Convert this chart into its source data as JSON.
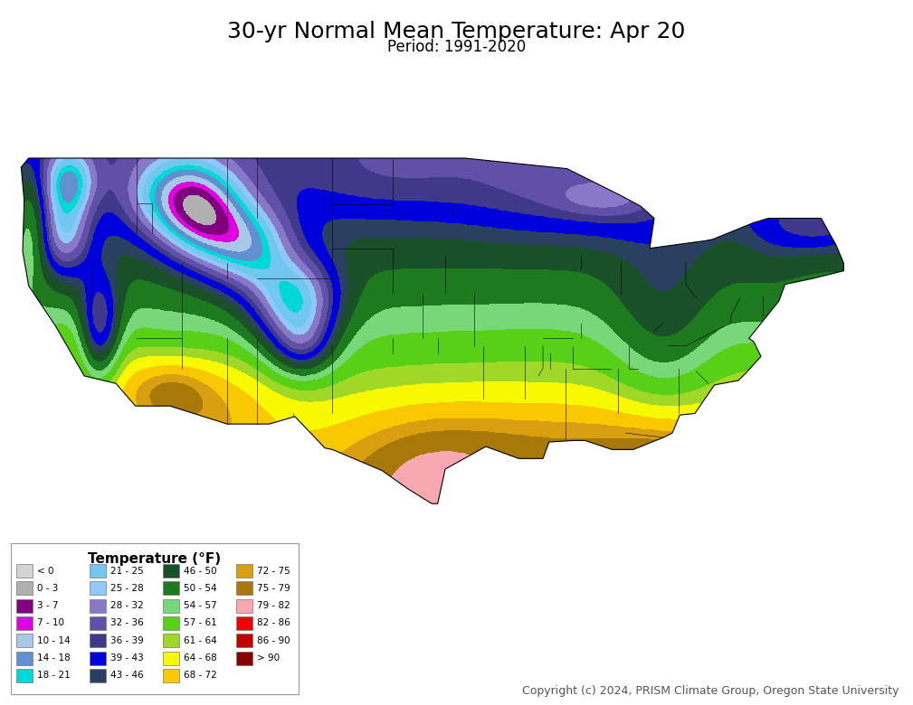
{
  "title": "30-yr Normal Mean Temperature: Apr 20",
  "subtitle": "Period: 1991-2020",
  "copyright": "Copyright (c) 2024, PRISM Climate Group, Oregon State University",
  "legend_title": "Temperature (°F)",
  "background_color": "#ffffff",
  "legend_entries": [
    {
      "label": "< 0",
      "color": "#d3d3d3"
    },
    {
      "label": "0 - 3",
      "color": "#b0b0b0"
    },
    {
      "label": "3 - 7",
      "color": "#800080"
    },
    {
      "label": "7 - 10",
      "color": "#e000e0"
    },
    {
      "label": "10 - 14",
      "color": "#a8c8e8"
    },
    {
      "label": "14 - 18",
      "color": "#6090d0"
    },
    {
      "label": "18 - 21",
      "color": "#00d8d8"
    },
    {
      "label": "21 - 25",
      "color": "#70c8f0"
    },
    {
      "label": "25 - 28",
      "color": "#90c8f8"
    },
    {
      "label": "28 - 32",
      "color": "#8878c8"
    },
    {
      "label": "32 - 36",
      "color": "#6050a8"
    },
    {
      "label": "36 - 39",
      "color": "#403888"
    },
    {
      "label": "39 - 43",
      "color": "#0000dd"
    },
    {
      "label": "43 - 46",
      "color": "#2a4060"
    },
    {
      "label": "46 - 50",
      "color": "#1a5028"
    },
    {
      "label": "50 - 54",
      "color": "#1e7a1e"
    },
    {
      "label": "54 - 57",
      "color": "#78d878"
    },
    {
      "label": "57 - 61",
      "color": "#58d018"
    },
    {
      "label": "61 - 64",
      "color": "#a0d828"
    },
    {
      "label": "64 - 68",
      "color": "#f8f800"
    },
    {
      "label": "68 - 72",
      "color": "#f8c800"
    },
    {
      "label": "72 - 75",
      "color": "#d8a010"
    },
    {
      "label": "75 - 79",
      "color": "#a87808"
    },
    {
      "label": "79 - 82",
      "color": "#f8a8b0"
    },
    {
      "label": "82 - 86",
      "color": "#f00000"
    },
    {
      "label": "86 - 90",
      "color": "#c00000"
    },
    {
      "label": "> 90",
      "color": "#880000"
    }
  ],
  "cmap_colors": [
    "#d3d3d3",
    "#b0b0b0",
    "#800080",
    "#e000e0",
    "#a8c8e8",
    "#6090d0",
    "#00d8d8",
    "#70c8f0",
    "#90c8f8",
    "#8878c8",
    "#6050a8",
    "#403888",
    "#0000dd",
    "#2a4060",
    "#1a5028",
    "#1e7a1e",
    "#78d878",
    "#58d018",
    "#a0d828",
    "#f8f800",
    "#f8c800",
    "#d8a010",
    "#a87808",
    "#f8a8b0",
    "#f00000",
    "#c00000",
    "#880000"
  ],
  "bounds": [
    -15,
    0,
    3,
    7,
    10,
    14,
    18,
    21,
    25,
    28,
    32,
    36,
    39,
    43,
    46,
    50,
    54,
    57,
    61,
    64,
    68,
    72,
    75,
    79,
    82,
    86,
    90,
    110
  ],
  "title_fontsize": 18,
  "subtitle_fontsize": 12,
  "copyright_fontsize": 9,
  "legend_title_fontsize": 11,
  "map_extent": [
    -125.5,
    -66.0,
    23.5,
    50.5
  ],
  "fig_width": 10.09,
  "fig_height": 7.8,
  "dpi": 100
}
